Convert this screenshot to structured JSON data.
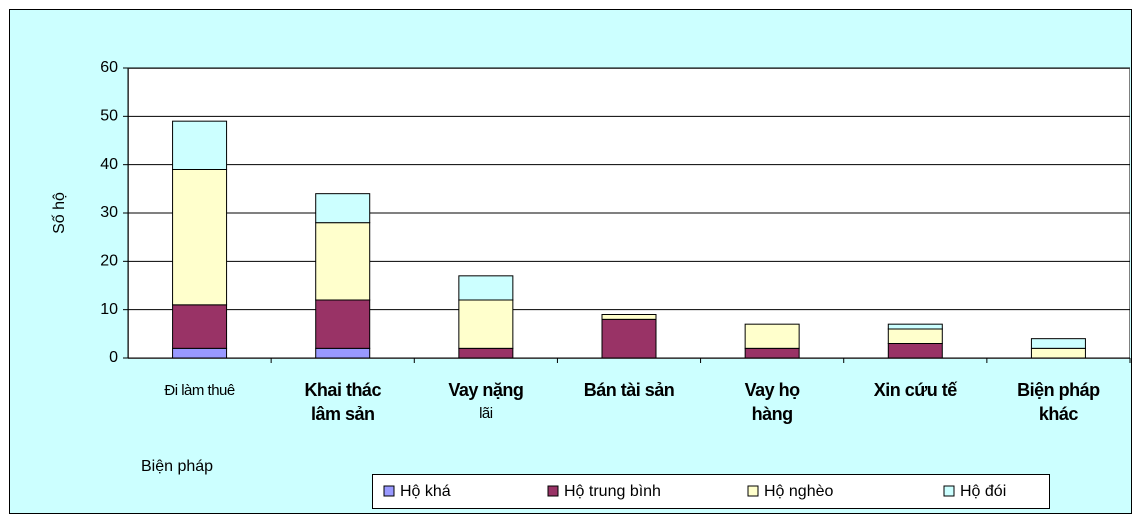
{
  "chart_data": {
    "type": "stacked_bar",
    "xlabel": "Biện pháp",
    "ylabel": "Số hộ",
    "categories": [
      [
        "Đi làm thuê"
      ],
      [
        "Khai thác",
        "lâm sản"
      ],
      [
        "Vay nặng",
        "lãi"
      ],
      [
        "Bán tài sản"
      ],
      [
        "Vay họ",
        "hàng"
      ],
      [
        "Xin cứu tế"
      ],
      [
        "Biện pháp",
        "khác"
      ]
    ],
    "series": [
      {
        "name": "Hộ khá",
        "color": "#9999ff",
        "values": [
          2,
          2,
          0,
          0,
          0,
          0,
          0
        ]
      },
      {
        "name": "Hộ trung bình",
        "color": "#993366",
        "values": [
          9,
          10,
          2,
          8,
          2,
          3,
          0
        ]
      },
      {
        "name": "Hộ nghèo",
        "color": "#ffffcc",
        "values": [
          28,
          16,
          10,
          1,
          5,
          3,
          2
        ]
      },
      {
        "name": "Hộ đói",
        "color": "#ccffff",
        "values": [
          10,
          6,
          5,
          0,
          0,
          1,
          2
        ]
      }
    ],
    "ylim": [
      0,
      60
    ],
    "yticks": [
      0,
      10,
      20,
      30,
      40,
      50,
      60
    ],
    "grid": true,
    "legend": "bottom"
  }
}
